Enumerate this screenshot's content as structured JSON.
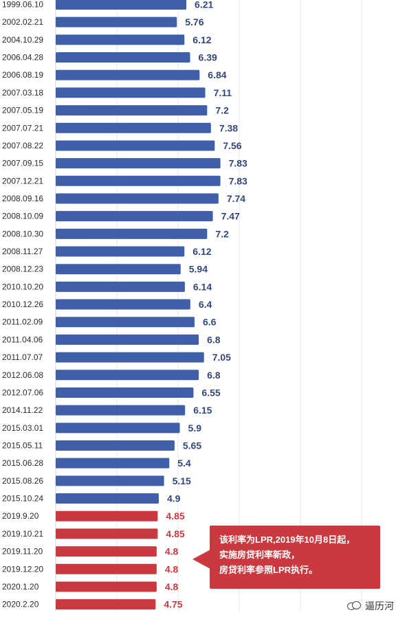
{
  "chart_data": {
    "type": "bar",
    "orientation": "horizontal",
    "categories": [
      "1999.06.10",
      "2002.02.21",
      "2004.10.29",
      "2006.04.28",
      "2006.08.19",
      "2007.03.18",
      "2007.05.19",
      "2007.07.21",
      "2007.08.22",
      "2007.09.15",
      "2007.12.21",
      "2008.09.16",
      "2008.10.09",
      "2008.10.30",
      "2008.11.27",
      "2008.12.23",
      "2010.10.20",
      "2010.12.26",
      "2011.02.09",
      "2011.04.06",
      "2011.07.07",
      "2012.06.08",
      "2012.07.06",
      "2014.11.22",
      "2015.03.01",
      "2015.05.11",
      "2015.06.28",
      "2015.08.26",
      "2015.10.24",
      "2019.9.20",
      "2019.10.21",
      "2019.11.20",
      "2019.12.20",
      "2020.1.20",
      "2020.2.20"
    ],
    "values": [
      6.21,
      5.76,
      6.12,
      6.39,
      6.84,
      7.11,
      7.2,
      7.38,
      7.56,
      7.83,
      7.83,
      7.74,
      7.47,
      7.2,
      6.12,
      5.94,
      6.14,
      6.4,
      6.6,
      6.8,
      7.05,
      6.8,
      6.55,
      6.15,
      5.9,
      5.65,
      5.4,
      5.15,
      4.9,
      4.85,
      4.85,
      4.8,
      4.8,
      4.8,
      4.75
    ],
    "value_labels": [
      "6.21",
      "5.76",
      "6.12",
      "6.39",
      "6.84",
      "7.11",
      "7.2",
      "7.38",
      "7.56",
      "7.83",
      "7.83",
      "7.74",
      "7.47",
      "7.2",
      "6.12",
      "5.94",
      "6.14",
      "6.4",
      "6.6",
      "6.8",
      "7.05",
      "6.8",
      "6.55",
      "6.15",
      "5.9",
      "5.65",
      "5.4",
      "5.15",
      "4.9",
      "4.85",
      "4.85",
      "4.8",
      "4.8",
      "4.8",
      "4.75"
    ],
    "lpr_start_index": 29,
    "colors": {
      "benchmark": "#3f5fa8",
      "lpr": "#c9393f",
      "benchmark_label": "#33477a",
      "lpr_label": "#c9393f"
    },
    "grid": true
  },
  "callout": {
    "lines": [
      "该利率为LPR,2019年10月8日起，",
      "实施房贷利率新政，",
      "房贷利率参照LPR执行。"
    ]
  },
  "watermark": {
    "text": "逼历河",
    "icon": "wechat-icon"
  }
}
